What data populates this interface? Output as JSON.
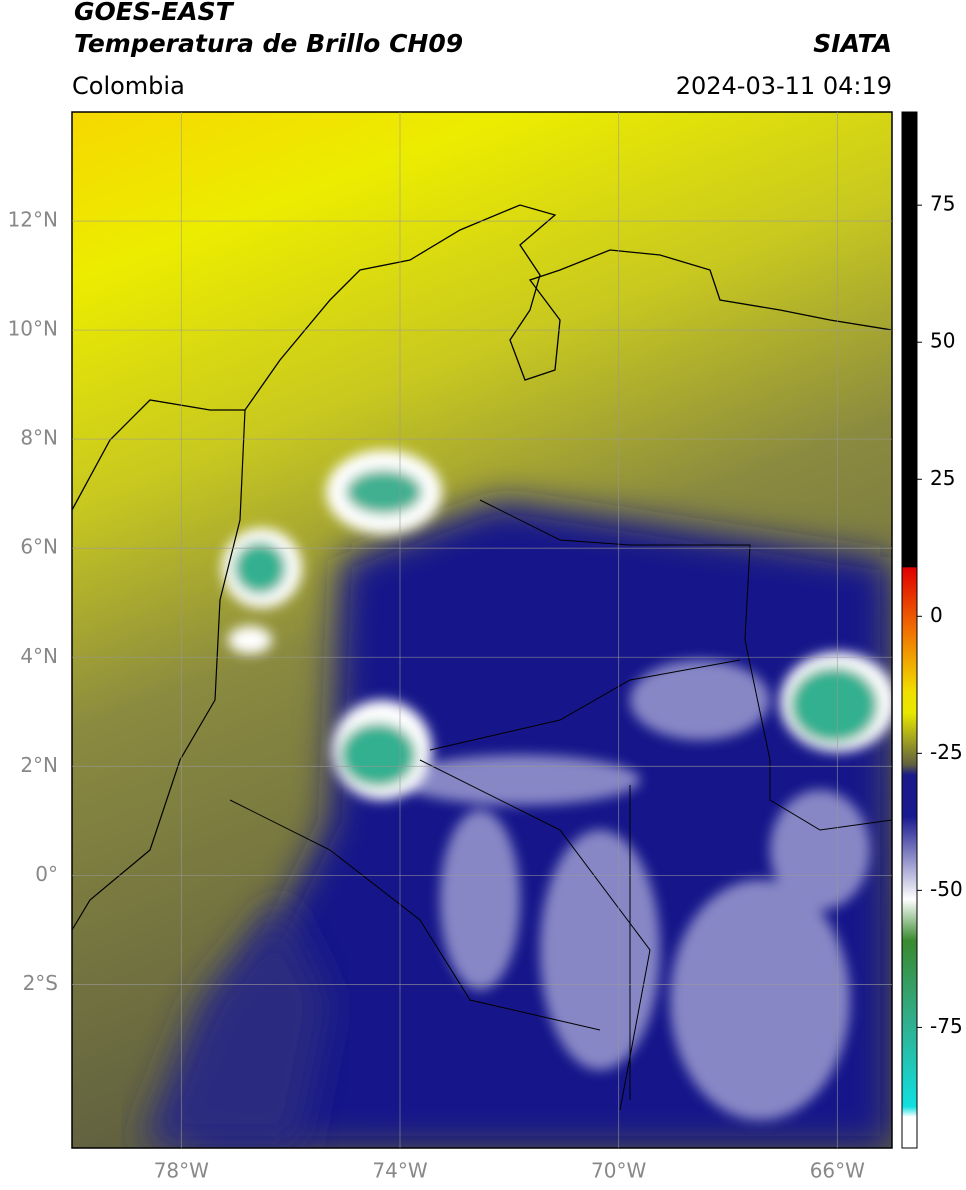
{
  "header": {
    "title_line1": "GOES-EAST",
    "title_line2": "Temperatura de Brillo CH09",
    "source": "SIATA",
    "region": "Colombia",
    "datetime": "2024-03-11 04:19"
  },
  "map": {
    "xlim": [
      -80,
      -65
    ],
    "ylim": [
      -5,
      14
    ],
    "xticks": [
      {
        "value": -78,
        "label": "78°W"
      },
      {
        "value": -74,
        "label": "74°W"
      },
      {
        "value": -70,
        "label": "70°W"
      },
      {
        "value": -66,
        "label": "66°W"
      }
    ],
    "yticks": [
      {
        "value": 12,
        "label": "12°N"
      },
      {
        "value": 10,
        "label": "10°N"
      },
      {
        "value": 8,
        "label": "8°N"
      },
      {
        "value": 6,
        "label": "6°N"
      },
      {
        "value": 4,
        "label": "4°N"
      },
      {
        "value": 2,
        "label": "2°N"
      },
      {
        "value": 0,
        "label": "0°"
      },
      {
        "value": -2,
        "label": "2°S"
      }
    ],
    "grid": true
  },
  "colorbar": {
    "clim": [
      -97,
      92
    ],
    "ticks": [
      75,
      50,
      25,
      0,
      -25,
      -50,
      -75
    ]
  }
}
